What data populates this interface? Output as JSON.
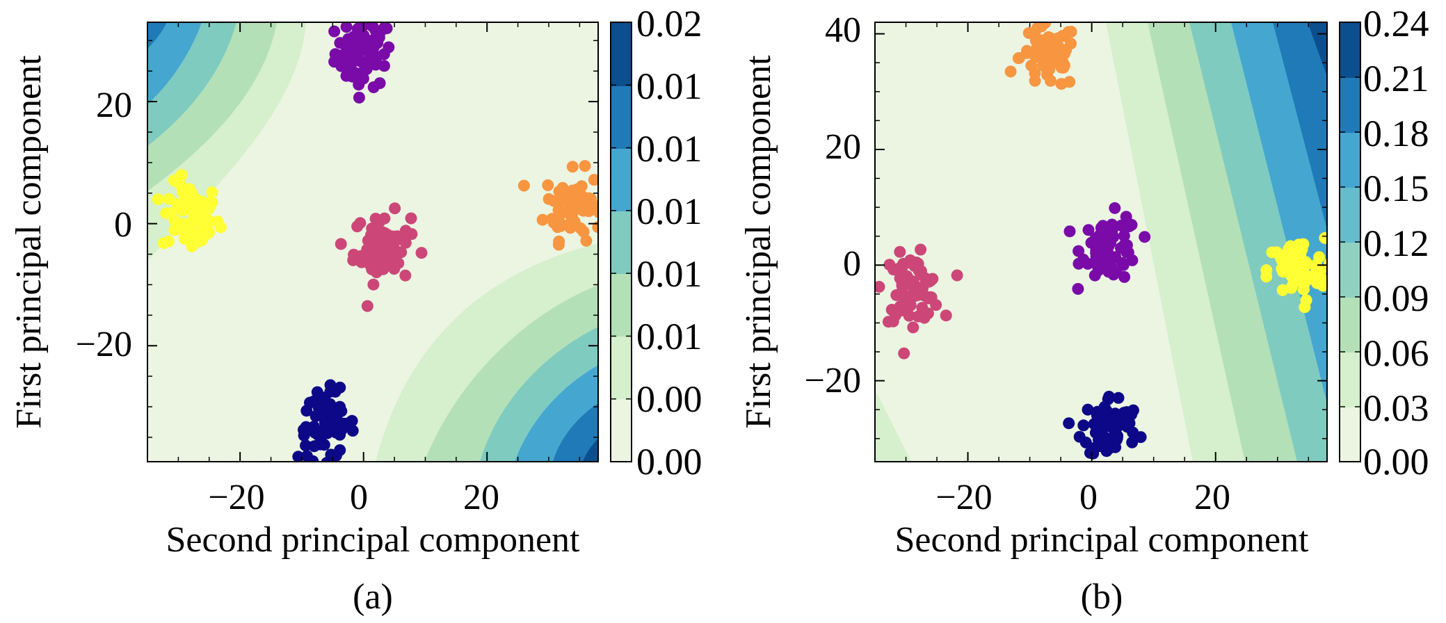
{
  "chart_data": [
    {
      "type": "scatter",
      "panel_caption": "(a)",
      "xlabel": "Second principal component",
      "ylabel": "First principal component",
      "xlim": [
        -35,
        38
      ],
      "ylim": [
        -39,
        33
      ],
      "xticks": [
        -20,
        0,
        20
      ],
      "yticks": [
        -20,
        0,
        20
      ],
      "background": "filled contour (green-blue)",
      "colorbar": {
        "ticks": [
          "0.02",
          "0.01",
          "0.01",
          "0.01",
          "0.01",
          "0.01",
          "0.00",
          "0.00"
        ]
      },
      "clusters": [
        {
          "color": "#7a0ba8",
          "center": [
            0,
            28
          ]
        },
        {
          "color": "#ffff33",
          "center": [
            -28,
            1
          ]
        },
        {
          "color": "#f89540",
          "center": [
            34,
            3
          ]
        },
        {
          "color": "#cc4778",
          "center": [
            3,
            -4
          ]
        },
        {
          "color": "#0d0887",
          "center": [
            -6,
            -33
          ]
        }
      ]
    },
    {
      "type": "scatter",
      "panel_caption": "(b)",
      "xlabel": "Second principal component",
      "ylabel": "First principal component",
      "xlim": [
        -35,
        38
      ],
      "ylim": [
        -34,
        42
      ],
      "xticks": [
        -20,
        0,
        20
      ],
      "yticks": [
        -20,
        0,
        20,
        40
      ],
      "background": "filled contour (green-blue)",
      "colorbar": {
        "ticks": [
          "0.24",
          "0.21",
          "0.18",
          "0.15",
          "0.12",
          "0.09",
          "0.06",
          "0.03",
          "0.00"
        ]
      },
      "clusters": [
        {
          "color": "#f89540",
          "center": [
            -7,
            36
          ]
        },
        {
          "color": "#7a0ba8",
          "center": [
            3,
            3
          ]
        },
        {
          "color": "#cc4778",
          "center": [
            -29,
            -4
          ]
        },
        {
          "color": "#ffff33",
          "center": [
            33,
            -1
          ]
        },
        {
          "color": "#0d0887",
          "center": [
            3,
            -28
          ]
        }
      ]
    }
  ]
}
